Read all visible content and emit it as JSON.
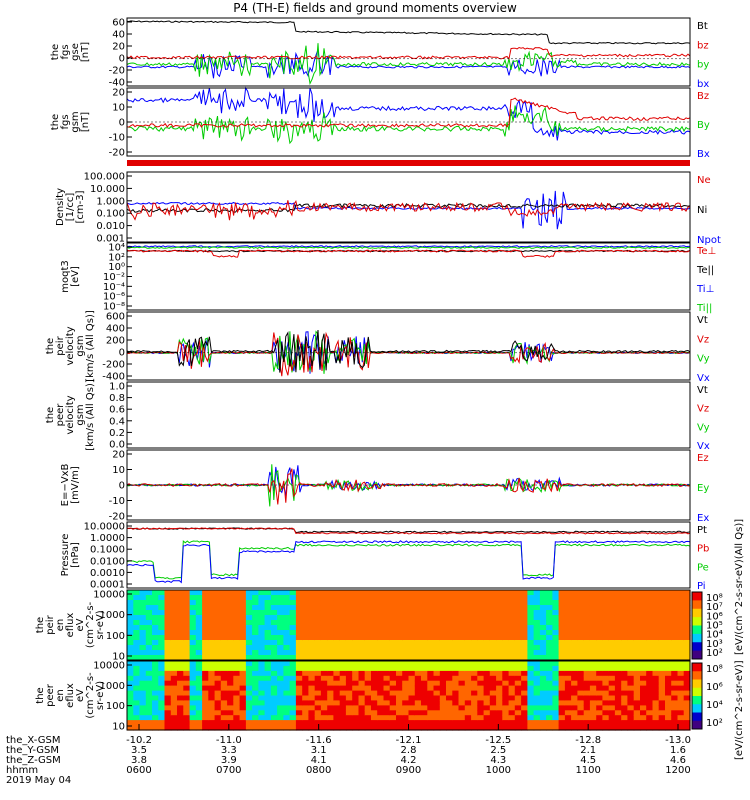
{
  "title": "P4 (TH-E) fields and ground moments overview",
  "colors": {
    "black": "#000000",
    "red": "#e00000",
    "green": "#00cc00",
    "blue": "#0000ff"
  },
  "chart_data": [
    {
      "type": "line",
      "ylabel": [
        "the",
        "fgs",
        "gse",
        "[nT]"
      ],
      "yticks": [
        "60",
        "40",
        "20",
        "0",
        "-20",
        "-40"
      ],
      "ylim": [
        -40,
        60
      ],
      "legend": [
        {
          "name": "Bt",
          "color": "black"
        },
        {
          "name": "bz",
          "color": "red"
        },
        {
          "name": "by",
          "color": "green"
        },
        {
          "name": "bx",
          "color": "blue"
        }
      ]
    },
    {
      "type": "line",
      "ylabel": [
        "the",
        "fgs",
        "gsm",
        "[nT]"
      ],
      "yticks": [
        "20",
        "10",
        "0",
        "-10",
        "-20"
      ],
      "ylim": [
        -25,
        25
      ],
      "legend": [
        {
          "name": "Bz",
          "color": "red"
        },
        {
          "name": "By",
          "color": "green"
        },
        {
          "name": "Bx",
          "color": "blue"
        }
      ]
    },
    {
      "type": "line",
      "ylabel": [
        "Density",
        "[1/cc]",
        "[cm-3]"
      ],
      "yticks": [
        "100.000",
        "10.000",
        "1.000",
        "0.100",
        "0.010",
        "0.001"
      ],
      "ylim": [
        0.001,
        100
      ],
      "log": true,
      "legend": [
        {
          "name": "Ne",
          "color": "red"
        },
        {
          "name": "Ni",
          "color": "black"
        },
        {
          "name": "Npot",
          "color": "blue"
        }
      ]
    },
    {
      "type": "line",
      "ylabel": [
        "moqt3",
        "[eV]"
      ],
      "yticks": [
        "10⁴",
        "10²",
        "10⁰",
        "10⁻²",
        "10⁻⁴",
        "10⁻⁶",
        "10⁻⁸"
      ],
      "log": true,
      "legend": [
        {
          "name": "Te⊥",
          "color": "red"
        },
        {
          "name": "Te||",
          "color": "black"
        },
        {
          "name": "Ti⊥",
          "color": "blue"
        },
        {
          "name": "Ti||",
          "color": "green"
        }
      ]
    },
    {
      "type": "line",
      "ylabel": [
        "the",
        "peir",
        "velocity",
        "gsm",
        "[km/s (All Qs)]"
      ],
      "yticks": [
        "600",
        "400",
        "200",
        "0",
        "-200",
        "-400"
      ],
      "ylim": [
        -400,
        600
      ],
      "legend": [
        {
          "name": "Vt",
          "color": "black"
        },
        {
          "name": "Vz",
          "color": "red"
        },
        {
          "name": "Vy",
          "color": "green"
        },
        {
          "name": "Vx",
          "color": "blue"
        }
      ]
    },
    {
      "type": "line",
      "ylabel": [
        "the",
        "peer",
        "velocity",
        "gsm",
        "[km/s (All Qs)]"
      ],
      "yticks": [
        "1.0",
        "0.8",
        "0.6",
        "0.4",
        "0.2",
        "0.0"
      ],
      "ylim": [
        0,
        1
      ],
      "legend": [
        {
          "name": "Vt",
          "color": "black"
        },
        {
          "name": "Vz",
          "color": "red"
        },
        {
          "name": "Vy",
          "color": "green"
        },
        {
          "name": "Vx",
          "color": "blue"
        }
      ]
    },
    {
      "type": "line",
      "ylabel": [
        "E=−VxB",
        "[mV/m]"
      ],
      "yticks": [
        "20",
        "10",
        "0",
        "-10",
        "-20"
      ],
      "ylim": [
        -20,
        20
      ],
      "legend": [
        {
          "name": "Ez",
          "color": "red"
        },
        {
          "name": "Ey",
          "color": "green"
        },
        {
          "name": "Ex",
          "color": "blue"
        }
      ]
    },
    {
      "type": "line",
      "ylabel": [
        "Pressure",
        "[nPa]"
      ],
      "yticks": [
        "10.0000",
        "1.0000",
        "0.1000",
        "0.0100",
        "0.0010",
        "0.0001"
      ],
      "ylim": [
        0.0001,
        10
      ],
      "log": true,
      "legend": [
        {
          "name": "Pt",
          "color": "black"
        },
        {
          "name": "Pb",
          "color": "red"
        },
        {
          "name": "Pe",
          "color": "green"
        },
        {
          "name": "Pi",
          "color": "blue"
        }
      ]
    },
    {
      "type": "heatmap",
      "ylabel": [
        "the",
        "peir",
        "en",
        "eflux",
        "eV",
        "(cm^2-s-",
        "sr-eV)"
      ],
      "yticks": [
        "10000",
        "1000",
        "100",
        "10"
      ],
      "ylim": [
        5,
        30000
      ],
      "log": true
    },
    {
      "type": "heatmap",
      "ylabel": [
        "the",
        "peer",
        "en",
        "eflux",
        "eV",
        "(cm^2-s-",
        "sr-eV)"
      ],
      "yticks": [
        "10000",
        "1000",
        "100",
        "10"
      ],
      "ylim": [
        5,
        30000
      ],
      "log": true
    }
  ],
  "colorbar_upper": {
    "ticks": [
      "10⁸",
      "10⁷",
      "10⁶",
      "10⁵",
      "10⁴",
      "10³",
      "10²"
    ],
    "label": "[eV/(cm^2-s-sr-eV)(All Qs)]"
  },
  "colorbar_lower": {
    "ticks": [
      "10⁸",
      "10⁶",
      "10⁴",
      "10²"
    ],
    "label": "[eV/(cm^2-s-sr-eV)]"
  },
  "xaxis": {
    "rows": [
      {
        "label": "the_X-GSM",
        "values": [
          "-10.2",
          "-11.0",
          "-11.6",
          "-12.1",
          "-12.5",
          "-12.8",
          "-13.0"
        ]
      },
      {
        "label": "the_Y-GSM",
        "values": [
          "3.5",
          "3.3",
          "3.1",
          "2.8",
          "2.5",
          "2.1",
          "1.6"
        ]
      },
      {
        "label": "the_Z-GSM",
        "values": [
          "3.8",
          "3.9",
          "4.1",
          "4.2",
          "4.3",
          "4.5",
          "4.6"
        ]
      },
      {
        "label": "hhmm",
        "values": [
          "0600",
          "0700",
          "0800",
          "0900",
          "1000",
          "1100",
          "1200"
        ]
      }
    ],
    "date": "2019 May 04"
  }
}
